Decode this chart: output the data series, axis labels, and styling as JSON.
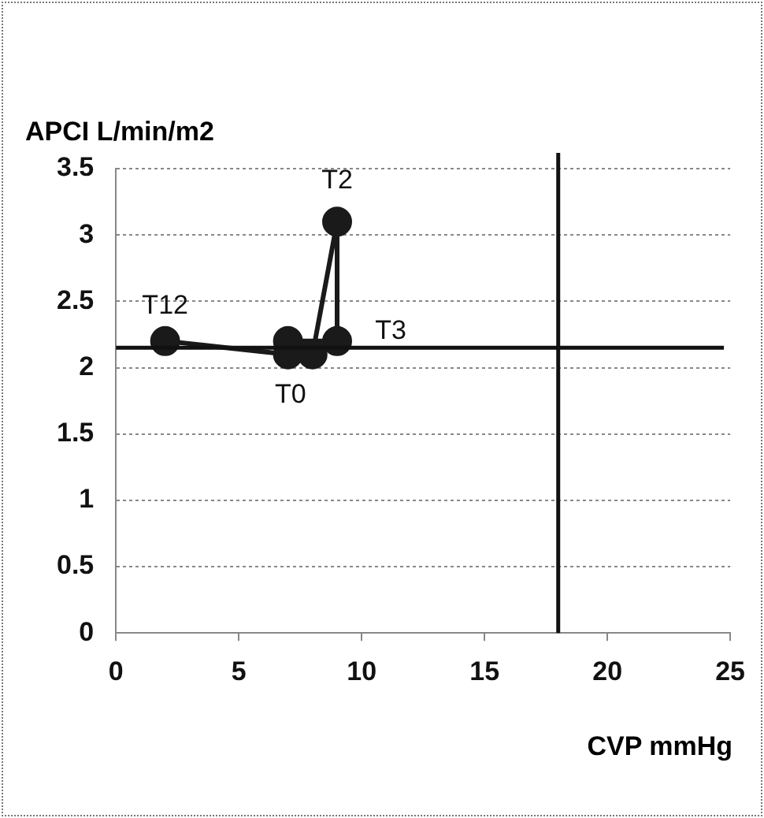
{
  "chart_data": {
    "type": "line",
    "xlabel": "CVP mmHg",
    "ylabel": "APCI L/min/m2",
    "x": [
      8,
      9,
      9,
      7,
      7,
      2
    ],
    "series": [
      {
        "color": "#1a1a1a",
        "values": [
          2.1,
          3.1,
          2.2,
          2.2,
          2.1,
          2.2
        ]
      }
    ],
    "xlim": [
      0,
      25
    ],
    "xticks": [
      0,
      5,
      10,
      15,
      20,
      25
    ],
    "ylim": [
      0,
      3.5
    ],
    "yticks": [
      0,
      0.5,
      1,
      1.5,
      2,
      2.5,
      3,
      3.5
    ],
    "grid": "y",
    "legend": false,
    "marker": "circle",
    "line_style": "solid",
    "ref_lines": [
      {
        "axis": "x",
        "value": 18,
        "color": "#111111"
      },
      {
        "axis": "y",
        "value": 2.15,
        "color": "#111111"
      }
    ],
    "annotations": [
      {
        "text": "T0",
        "x": 8,
        "y": 2.1
      },
      {
        "text": "T2",
        "x": 9,
        "y": 3.1
      },
      {
        "text": "T3",
        "x": 9,
        "y": 2.2
      },
      {
        "text": "T12",
        "x": 2,
        "y": 2.2
      }
    ]
  }
}
